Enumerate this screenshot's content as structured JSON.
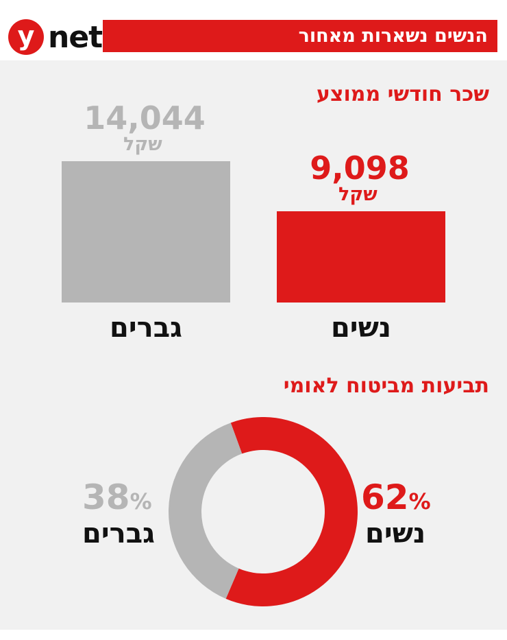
{
  "header": {
    "logo_letter": "y",
    "logo_word": "net",
    "title": "הנשים נשארות מאחור"
  },
  "colors": {
    "accent": "#de1a1a",
    "grey": "#b5b5b5",
    "panel_bg": "#f1f1f1"
  },
  "chart_data": [
    {
      "type": "bar",
      "title": "שכר חודשי ממוצע",
      "categories": [
        "נשים",
        "גברים"
      ],
      "values": [
        9098,
        14044
      ],
      "value_labels": [
        "9,098",
        "14,044"
      ],
      "unit": "שקל",
      "series_colors": [
        "#de1a1a",
        "#b5b5b5"
      ]
    },
    {
      "type": "pie",
      "title": "תביעות מביטוח לאומי",
      "categories": [
        "נשים",
        "גברים"
      ],
      "values": [
        62,
        38
      ],
      "value_labels": [
        "62",
        "38"
      ],
      "percent_sign": "%",
      "series_colors": [
        "#de1a1a",
        "#b5b5b5"
      ]
    }
  ]
}
